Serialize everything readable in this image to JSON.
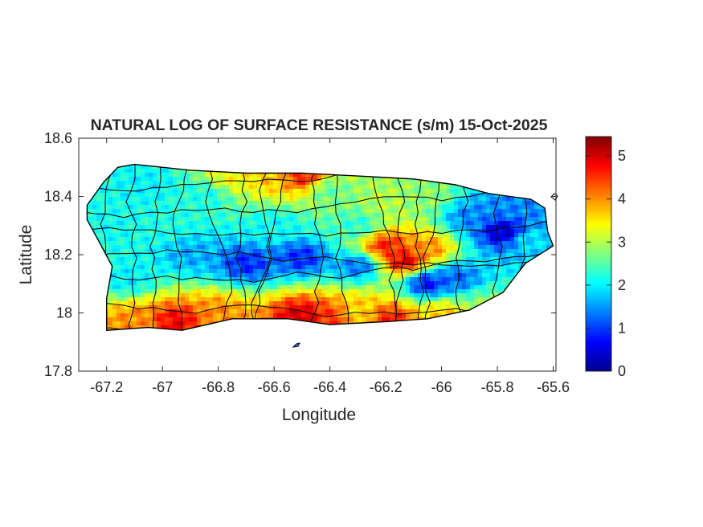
{
  "figure": {
    "title": "NATURAL LOG OF SURFACE RESISTANCE (s/m) 15-Oct-2025",
    "xlabel": "Longitude",
    "ylabel": "Latitude"
  },
  "chart_data": {
    "type": "heatmap",
    "title": "NATURAL LOG OF SURFACE RESISTANCE (s/m) 15-Oct-2025",
    "xlabel": "Longitude",
    "ylabel": "Latitude",
    "xlim": [
      -67.3,
      -65.59
    ],
    "ylim": [
      17.8,
      18.6
    ],
    "x_ticks": [
      -67.2,
      -67,
      -66.8,
      -66.6,
      -66.4,
      -66.2,
      -66,
      -65.8,
      -65.6
    ],
    "x_tick_labels": [
      "-67.2",
      "-67",
      "-66.8",
      "-66.6",
      "-66.4",
      "-66.2",
      "-66",
      "-65.8",
      "-65.6"
    ],
    "y_ticks": [
      17.8,
      18,
      18.2,
      18.4,
      18.6
    ],
    "y_tick_labels": [
      "17.8",
      "18",
      "18.2",
      "18.4",
      "18.6"
    ],
    "grid": false,
    "colormap": "jet",
    "colorbar": {
      "range": [
        0,
        5.45
      ],
      "ticks": [
        0,
        1,
        2,
        3,
        4,
        5
      ],
      "tick_labels": [
        "0",
        "1",
        "2",
        "3",
        "4",
        "5"
      ]
    },
    "region_outline": [
      [
        -67.27,
        18.37
      ],
      [
        -67.21,
        18.45
      ],
      [
        -67.16,
        18.5
      ],
      [
        -67.1,
        18.51
      ],
      [
        -66.9,
        18.49
      ],
      [
        -66.7,
        18.48
      ],
      [
        -66.5,
        18.48
      ],
      [
        -66.3,
        18.47
      ],
      [
        -66.1,
        18.46
      ],
      [
        -65.95,
        18.44
      ],
      [
        -65.83,
        18.41
      ],
      [
        -65.68,
        18.39
      ],
      [
        -65.63,
        18.36
      ],
      [
        -65.62,
        18.28
      ],
      [
        -65.6,
        18.23
      ],
      [
        -65.7,
        18.17
      ],
      [
        -65.78,
        18.07
      ],
      [
        -65.9,
        18.01
      ],
      [
        -66.05,
        17.98
      ],
      [
        -66.2,
        17.97
      ],
      [
        -66.4,
        17.96
      ],
      [
        -66.55,
        17.98
      ],
      [
        -66.75,
        17.98
      ],
      [
        -66.93,
        17.94
      ],
      [
        -67.05,
        17.95
      ],
      [
        -67.2,
        17.94
      ],
      [
        -67.2,
        18.05
      ],
      [
        -67.18,
        18.16
      ],
      [
        -67.23,
        18.25
      ],
      [
        -67.27,
        18.32
      ]
    ],
    "field_anchors": [
      {
        "lon": -67.18,
        "lat": 18.3,
        "value": 2.1
      },
      {
        "lon": -67.05,
        "lat": 18.44,
        "value": 2.0
      },
      {
        "lon": -66.85,
        "lat": 18.4,
        "value": 2.2
      },
      {
        "lon": -66.6,
        "lat": 18.47,
        "value": 3.7
      },
      {
        "lon": -66.5,
        "lat": 18.47,
        "value": 4.6
      },
      {
        "lon": -66.75,
        "lat": 18.47,
        "value": 3.4
      },
      {
        "lon": -66.4,
        "lat": 18.42,
        "value": 2.6
      },
      {
        "lon": -66.2,
        "lat": 18.38,
        "value": 3.0
      },
      {
        "lon": -66.05,
        "lat": 18.4,
        "value": 2.8
      },
      {
        "lon": -66.2,
        "lat": 18.23,
        "value": 4.6
      },
      {
        "lon": -66.13,
        "lat": 18.18,
        "value": 4.9
      },
      {
        "lon": -66.05,
        "lat": 18.22,
        "value": 4.0
      },
      {
        "lon": -65.9,
        "lat": 18.33,
        "value": 1.4
      },
      {
        "lon": -65.78,
        "lat": 18.28,
        "value": 0.4
      },
      {
        "lon": -65.75,
        "lat": 18.36,
        "value": 1.4
      },
      {
        "lon": -65.68,
        "lat": 18.25,
        "value": 1.9
      },
      {
        "lon": -66.7,
        "lat": 18.17,
        "value": 0.9
      },
      {
        "lon": -66.5,
        "lat": 18.19,
        "value": 0.9
      },
      {
        "lon": -66.3,
        "lat": 18.16,
        "value": 1.3
      },
      {
        "lon": -66.05,
        "lat": 18.1,
        "value": 0.8
      },
      {
        "lon": -65.95,
        "lat": 18.12,
        "value": 1.2
      },
      {
        "lon": -66.9,
        "lat": 18.2,
        "value": 1.6
      },
      {
        "lon": -67.12,
        "lat": 18.12,
        "value": 2.0
      },
      {
        "lon": -67.1,
        "lat": 17.97,
        "value": 4.0
      },
      {
        "lon": -66.95,
        "lat": 17.97,
        "value": 4.8
      },
      {
        "lon": -66.8,
        "lat": 18.0,
        "value": 4.0
      },
      {
        "lon": -66.5,
        "lat": 17.99,
        "value": 5.0
      },
      {
        "lon": -66.4,
        "lat": 17.98,
        "value": 4.5
      },
      {
        "lon": -66.3,
        "lat": 18.0,
        "value": 3.6
      },
      {
        "lon": -66.18,
        "lat": 17.98,
        "value": 4.6
      },
      {
        "lon": -66.0,
        "lat": 18.0,
        "value": 3.6
      },
      {
        "lon": -65.85,
        "lat": 18.02,
        "value": 2.8
      },
      {
        "lon": -66.6,
        "lat": 18.3,
        "value": 2.1
      },
      {
        "lon": -66.3,
        "lat": 18.3,
        "value": 2.3
      },
      {
        "lon": -67.0,
        "lat": 18.3,
        "value": 2.2
      }
    ]
  }
}
